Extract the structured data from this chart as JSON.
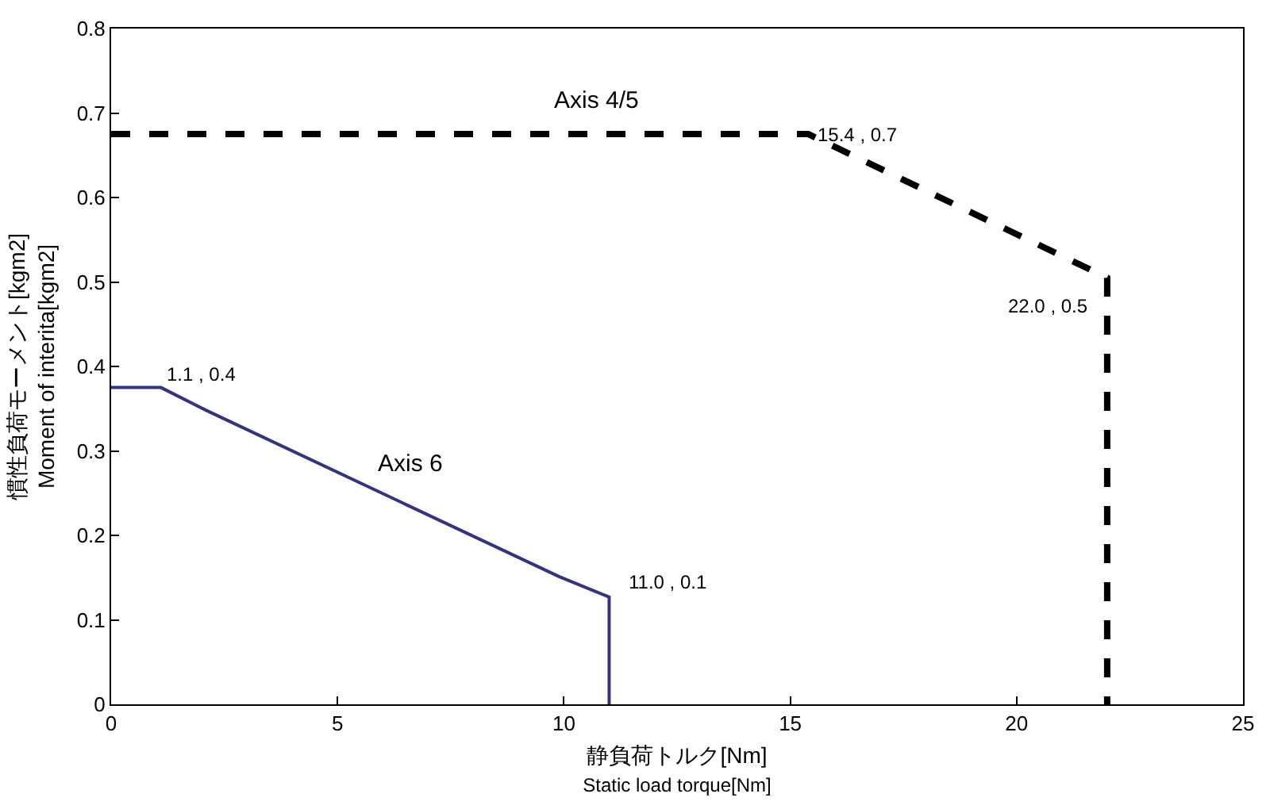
{
  "chart_data": {
    "type": "line",
    "xlabel": "静負荷トルク[Nm]\nStatic load torque[Nm]",
    "ylabel": "慣性負荷モーメント[kgm2]\nMoment of interita[kgm2]",
    "series": [
      {
        "name": "Axis 4/5",
        "color": "#000000",
        "line_style": "dashed",
        "x": [
          0,
          15.4,
          22.0,
          22.0
        ],
        "values": [
          0.675,
          0.675,
          0.505,
          0
        ]
      },
      {
        "name": "Axis 6",
        "color": "#333380",
        "line_style": "solid",
        "x": [
          0,
          1.1,
          2.1,
          9.9,
          11.0,
          11.0
        ],
        "values": [
          0.375,
          0.375,
          0.348,
          0.151,
          0.127,
          0
        ]
      }
    ],
    "annotations": [
      {
        "text": "15.4 , 0.7",
        "x": 15.4,
        "y": 0.675
      },
      {
        "text": "22.0 , 0.5",
        "x": 22.0,
        "y": 0.505
      },
      {
        "text": "1.1 , 0.4",
        "x": 1.1,
        "y": 0.375
      },
      {
        "text": "11.0 , 0.1",
        "x": 11.0,
        "y": 0.127
      }
    ],
    "xlim": [
      0,
      25
    ],
    "xticks": [
      0,
      5,
      10,
      15,
      20,
      25
    ],
    "ylim": [
      0,
      0.8
    ],
    "yticks": [
      0,
      0.1,
      0.2,
      0.3,
      0.4,
      0.5,
      0.6,
      0.7,
      0.8
    ],
    "grid": false,
    "legend": false,
    "marker": "none"
  }
}
